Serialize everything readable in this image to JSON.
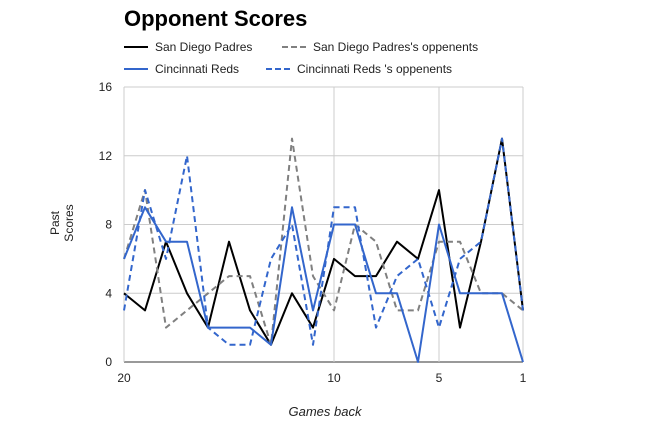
{
  "chart_data": {
    "type": "line",
    "title": "Opponent Scores",
    "xlabel": "Games back",
    "ylabel": "Past Scores",
    "xlim": [
      20,
      1
    ],
    "ylim": [
      0,
      16
    ],
    "x_ticks": [
      20,
      10,
      5,
      1
    ],
    "y_ticks": [
      0,
      4,
      8,
      12,
      16
    ],
    "grid": true,
    "legend_position": "top",
    "x": [
      20,
      19,
      18,
      17,
      16,
      15,
      14,
      13,
      12,
      11,
      10,
      9,
      8,
      7,
      6,
      5,
      4,
      3,
      2,
      1
    ],
    "series": [
      {
        "name": "San Diego Padres",
        "color": "#000000",
        "dash": "solid",
        "values": [
          4,
          3,
          7,
          4,
          2,
          7,
          3,
          1,
          4,
          2,
          6,
          5,
          5,
          7,
          6,
          10,
          2,
          7,
          13,
          3
        ]
      },
      {
        "name": "San Diego Padres's oppenents",
        "color": "#808080",
        "dash": "dashed",
        "values": [
          6,
          10,
          2,
          3,
          4,
          5,
          5,
          1,
          13,
          5,
          3,
          8,
          7,
          3,
          3,
          7,
          7,
          4,
          4,
          3
        ]
      },
      {
        "name": "Cincinnati Reds",
        "color": "#3366cc",
        "dash": "solid",
        "values": [
          6,
          9,
          7,
          7,
          2,
          2,
          2,
          1,
          9,
          3,
          8,
          8,
          4,
          4,
          0,
          8,
          4,
          4,
          4,
          0
        ]
      },
      {
        "name": "Cincinnati Reds 's oppenents",
        "color": "#3366cc",
        "dash": "dashed",
        "values": [
          3,
          10,
          6,
          12,
          2,
          1,
          1,
          6,
          8,
          1,
          9,
          9,
          2,
          5,
          6,
          2,
          6,
          7,
          13,
          3
        ]
      }
    ]
  }
}
